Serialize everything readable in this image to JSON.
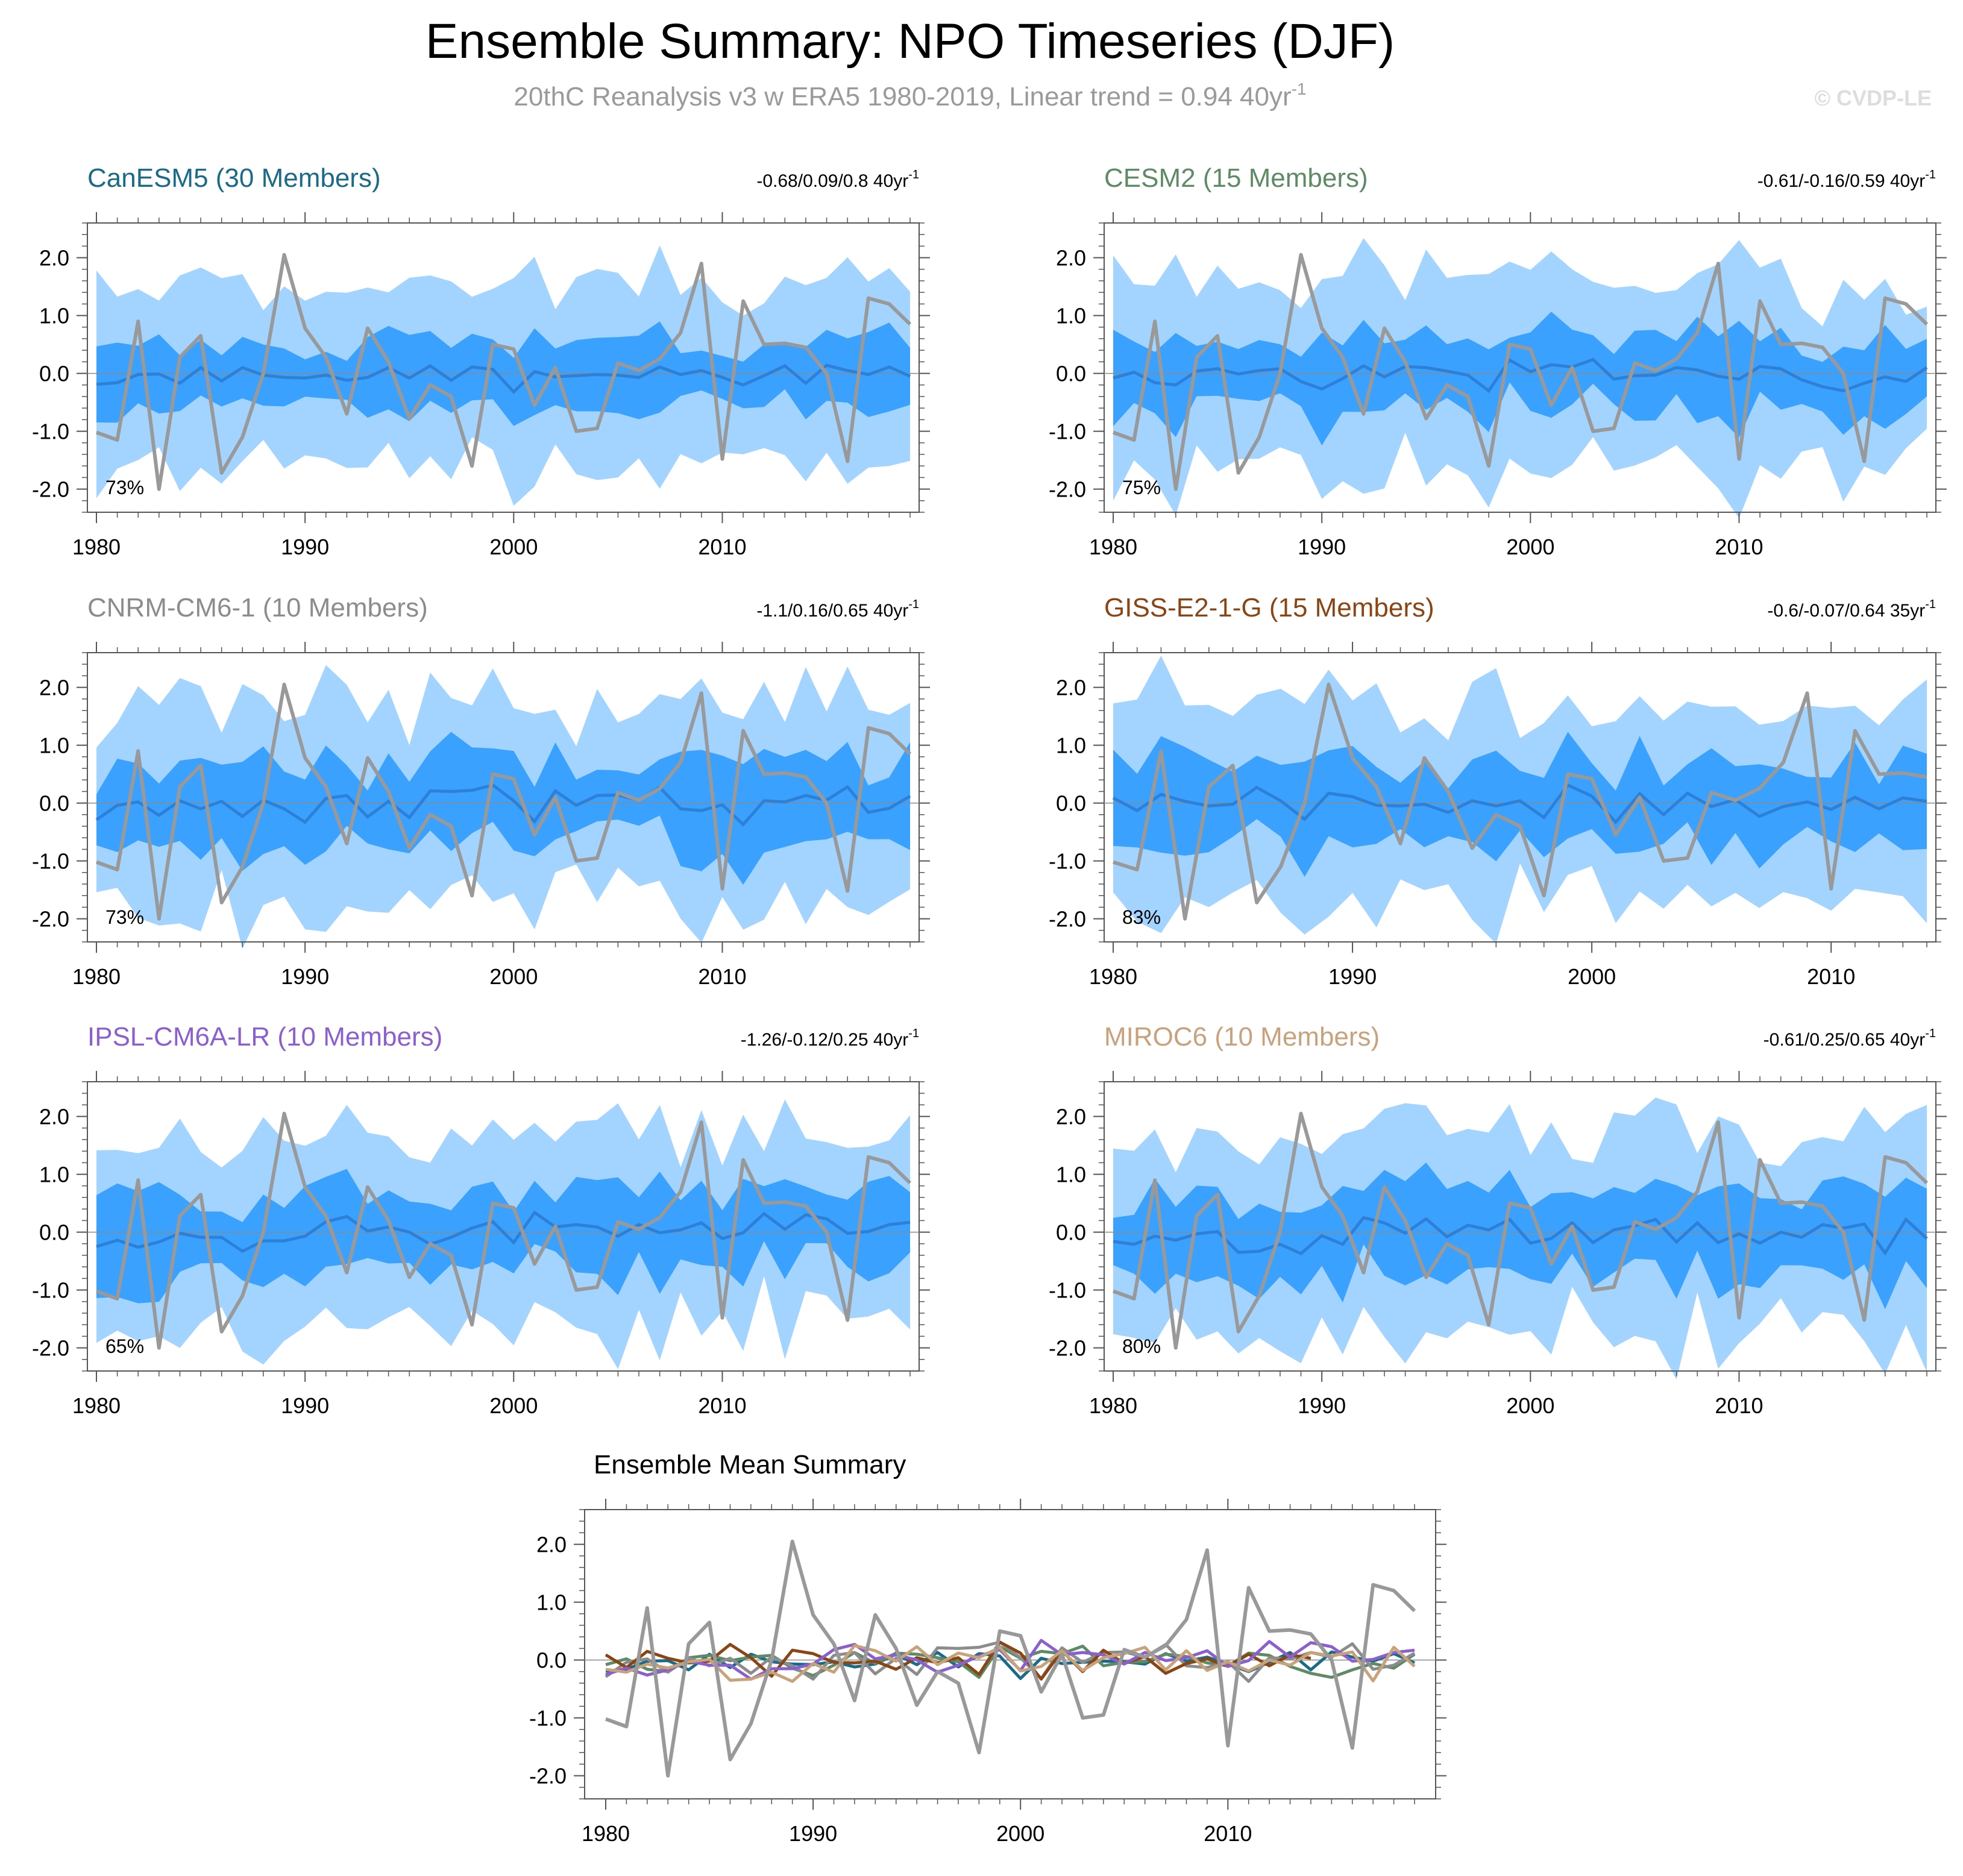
{
  "header": {
    "title": "Ensemble Summary: NPO Timeseries (DJF)",
    "subtitle": "20thC Reanalysis v3 w ERA5 1980-2019, Linear trend = 0.94 40yr",
    "subtitle_exp": "-1",
    "watermark": "© CVDP-LE"
  },
  "colors": {
    "outer_band": "#a3d4ff",
    "inner_band": "#3aa1ff",
    "ens_mean": "#2e7fd6",
    "obs": "#999999",
    "axis": "#555555"
  },
  "chart_data": {
    "type": "line",
    "observations": {
      "name": "20thC Reanalysis v3 w ERA5",
      "start_year": 1980,
      "values": [
        -1.02,
        -1.15,
        0.9,
        -2.0,
        0.28,
        0.65,
        -1.72,
        -1.1,
        0.0,
        2.05,
        0.78,
        0.28,
        -0.7,
        0.78,
        0.2,
        -0.78,
        -0.2,
        -0.4,
        -1.6,
        0.5,
        0.42,
        -0.55,
        0.1,
        -1.0,
        -0.95,
        0.18,
        0.05,
        0.25,
        0.7,
        1.9,
        -1.48,
        1.25,
        0.5,
        0.52,
        0.45,
        0.0,
        -1.52,
        1.3,
        1.2,
        0.85
      ]
    },
    "xlim": [
      1980,
      2019
    ],
    "ylim": [
      -2.4,
      2.6
    ],
    "x_ticks": [
      1980,
      1990,
      2000,
      2010
    ],
    "y_ticks": [
      2.0,
      1.0,
      0.0,
      -1.0,
      -2.0
    ],
    "y_tick_labels": [
      "2.0",
      "1.0",
      "0.0",
      "-1.0",
      "-2.0"
    ],
    "panels": [
      {
        "id": "canesm5",
        "title": "CanESM5 (30 Members)",
        "title_color": "#1a6b8a",
        "trend": "-0.68/0.09/0.8 40yr",
        "trend_exp": "-1",
        "pct": "73%",
        "start_year": 1980,
        "end_year": 2019,
        "seed": 11,
        "amp": 0.2,
        "spread": 0.55
      },
      {
        "id": "cesm2",
        "title": "CESM2 (15 Members)",
        "title_color": "#5e8a66",
        "trend": "-0.61/-0.16/0.59 40yr",
        "trend_exp": "-1",
        "pct": "75%",
        "start_year": 1980,
        "end_year": 2019,
        "seed": 23,
        "amp": 0.28,
        "spread": 0.7
      },
      {
        "id": "cnrm",
        "title": "CNRM-CM6-1 (10 Members)",
        "title_color": "#8c8c8c",
        "trend": "-1.1/0.16/0.65 40yr",
        "trend_exp": "-1",
        "pct": "73%",
        "start_year": 1980,
        "end_year": 2019,
        "seed": 37,
        "amp": 0.35,
        "spread": 0.75
      },
      {
        "id": "giss",
        "title": "GISS-E2-1-G (15 Members)",
        "title_color": "#8b4513",
        "trend": "-0.6/-0.07/0.64 35yr",
        "trend_exp": "-1",
        "pct": "83%",
        "start_year": 1980,
        "end_year": 2014,
        "seed": 41,
        "amp": 0.3,
        "spread": 0.7
      },
      {
        "id": "ipsl",
        "title": "IPSL-CM6A-LR (10 Members)",
        "title_color": "#8b5fcf",
        "trend": "-1.26/-0.12/0.25 40yr",
        "trend_exp": "-1",
        "pct": "65%",
        "start_year": 1980,
        "end_year": 2019,
        "seed": 53,
        "amp": 0.3,
        "spread": 0.75
      },
      {
        "id": "miroc6",
        "title": "MIROC6 (10 Members)",
        "title_color": "#c8a27a",
        "trend": "-0.61/0.25/0.65 40yr",
        "trend_exp": "-1",
        "pct": "80%",
        "start_year": 1980,
        "end_year": 2019,
        "seed": 67,
        "amp": 0.32,
        "spread": 0.7
      }
    ],
    "summary": {
      "title": "Ensemble Mean Summary",
      "series": [
        {
          "name": "CanESM5",
          "color": "#1a6b8a"
        },
        {
          "name": "CESM2",
          "color": "#5e8a66"
        },
        {
          "name": "CNRM-CM6-1",
          "color": "#8c8c8c"
        },
        {
          "name": "GISS-E2-1-G",
          "color": "#8b4513"
        },
        {
          "name": "IPSL-CM6A-LR",
          "color": "#8b5fcf"
        },
        {
          "name": "MIROC6",
          "color": "#c8a27a"
        }
      ]
    }
  }
}
